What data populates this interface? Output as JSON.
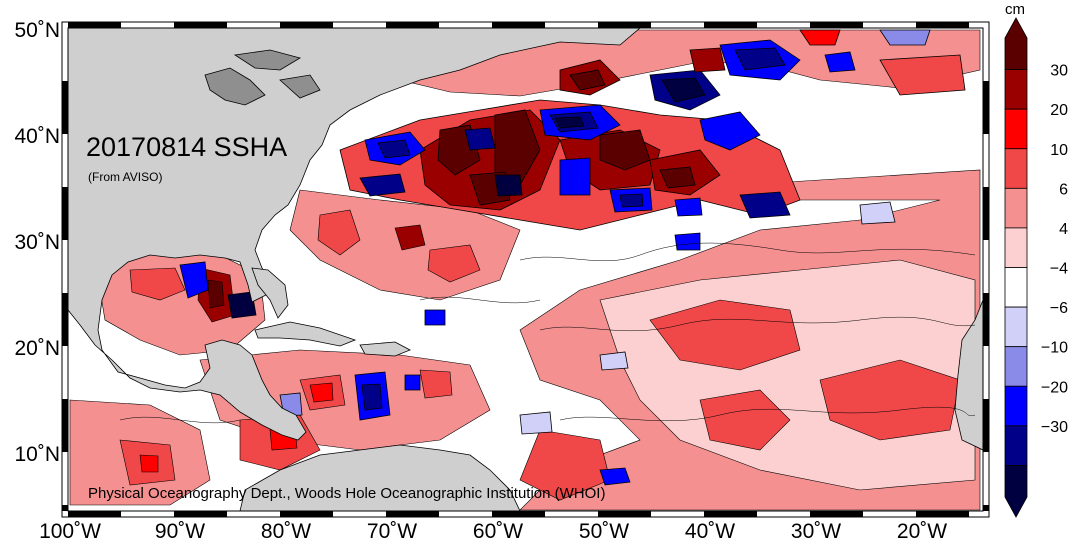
{
  "map": {
    "title": "20170814 SSHA",
    "subtitle": "(From AVISO)",
    "credit": "Physical Oceanography Dept., Woods Hole Oceanographic Institution (WHOI)",
    "lat_labels": [
      "50˚N",
      "40˚N",
      "30˚N",
      "20˚N",
      "10˚N"
    ],
    "lon_labels": [
      "100˚W",
      "90˚W",
      "80˚W",
      "70˚W",
      "60˚W",
      "50˚W",
      "40˚W",
      "30˚W",
      "20˚W"
    ],
    "land_color": "#cfcfcf",
    "lake_color": "#8f8f8f"
  },
  "colorbar": {
    "unit": "cm",
    "tick_labels": [
      "30",
      "20",
      "10",
      "6",
      "4",
      "−4",
      "−6",
      "−10",
      "−20",
      "−30"
    ],
    "colors": [
      "#5a0000",
      "#9a0000",
      "#ff0000",
      "#f04848",
      "#f49090",
      "#fcd0d0",
      "#ffffff",
      "#d0d0f8",
      "#8a8ae8",
      "#0000ff",
      "#000088",
      "#000040"
    ]
  }
}
